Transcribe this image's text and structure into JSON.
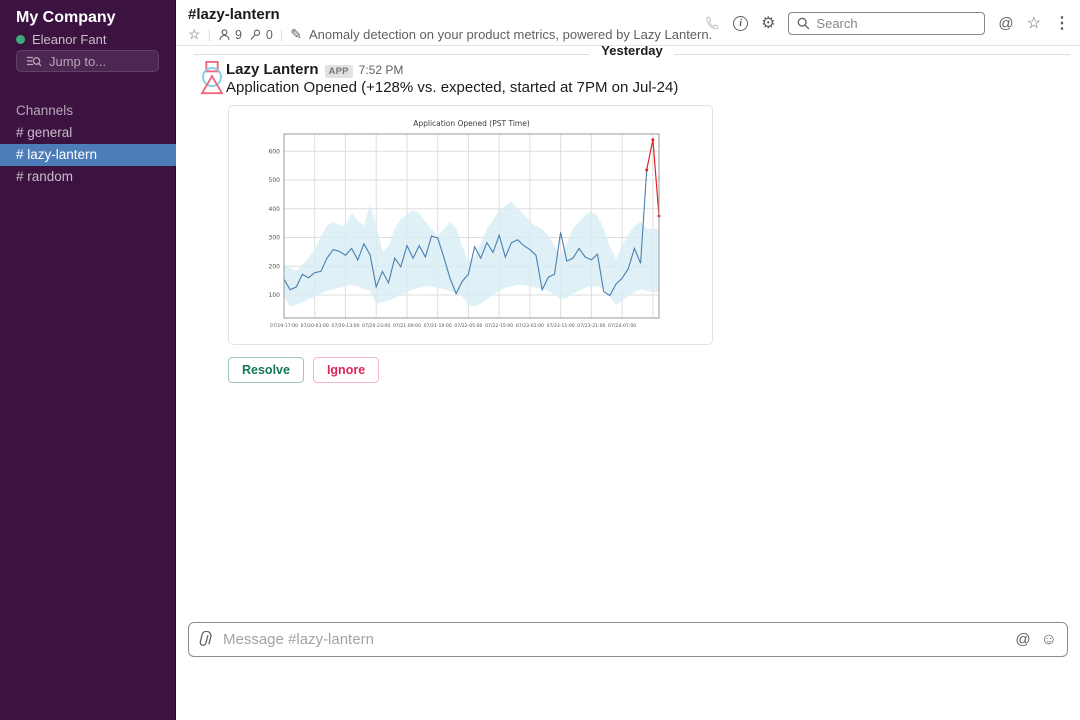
{
  "sidebar": {
    "workspace_name": "My Company",
    "user": {
      "name": "Eleanor Fant",
      "presence": "active"
    },
    "jump_to_label": "Jump to...",
    "channels_header": "Channels",
    "channels": [
      {
        "label": "# general",
        "selected": false
      },
      {
        "label": "# lazy-lantern",
        "selected": true
      },
      {
        "label": "# random",
        "selected": false
      }
    ],
    "colors": {
      "bg": "#3b1240",
      "selected_bg": "#4d7db8",
      "presence_green": "#3daa7c"
    }
  },
  "header": {
    "channel_title": "#lazy-lantern",
    "member_count": "9",
    "pin_count": "0",
    "topic": "Anomaly detection on your product metrics, powered by Lazy Lantern.",
    "search_placeholder": "Search"
  },
  "conversation": {
    "date_divider": "Yesterday",
    "message": {
      "sender": "Lazy Lantern",
      "badge": "APP",
      "timestamp": "7:52 PM",
      "text": "Application Opened (+128% vs. expected, started at 7PM on Jul-24)",
      "actions": [
        {
          "label": "Resolve",
          "style": "green"
        },
        {
          "label": "Ignore",
          "style": "red"
        }
      ]
    }
  },
  "composer": {
    "placeholder": "Message #lazy-lantern"
  },
  "chart_data": {
    "type": "line",
    "title": "Application Opened (PST Time)",
    "x_tick_indices": [
      0,
      5,
      10,
      15,
      20,
      25,
      30,
      35,
      40,
      45,
      50,
      55
    ],
    "grid_extra_indices": [
      60
    ],
    "x_tick_labels": [
      "07/19-17:00",
      "07/20-03:00",
      "07/20-13:00",
      "07/20-23:00",
      "07/21-09:00",
      "07/21-19:00",
      "07/22-05:00",
      "07/22-15:00",
      "07/23-01:00",
      "07/23-11:00",
      "07/23-21:00",
      "07/24-07:00"
    ],
    "y_ticks": [
      100,
      200,
      300,
      400,
      500,
      600
    ],
    "ylim": [
      20,
      660
    ],
    "x_count": 62,
    "grid": true,
    "legend": "none",
    "series": [
      {
        "name": "observed",
        "color": "#4a7fb0",
        "values": [
          155,
          118,
          128,
          172,
          160,
          178,
          182,
          228,
          258,
          252,
          238,
          262,
          222,
          278,
          240,
          128,
          182,
          142,
          228,
          198,
          272,
          228,
          272,
          232,
          305,
          298,
          232,
          158,
          105,
          148,
          172,
          268,
          228,
          282,
          248,
          308,
          232,
          282,
          292,
          272,
          258,
          238,
          118,
          162,
          172,
          318,
          218,
          228,
          262,
          232,
          222,
          242,
          112,
          98,
          138,
          158,
          192,
          262,
          210,
          535
        ]
      },
      {
        "name": "anomaly",
        "color": "#e02424",
        "x": [
          59,
          60,
          61
        ],
        "values": [
          535,
          640,
          375
        ]
      }
    ],
    "band": {
      "name": "expected-range",
      "color": "#d7ecf4",
      "upper": [
        210,
        195,
        185,
        205,
        230,
        255,
        305,
        340,
        355,
        345,
        340,
        385,
        360,
        340,
        415,
        340,
        250,
        270,
        330,
        365,
        380,
        395,
        385,
        355,
        330,
        305,
        330,
        355,
        330,
        270,
        215,
        235,
        280,
        330,
        360,
        395,
        410,
        425,
        400,
        380,
        355,
        340,
        330,
        305,
        270,
        240,
        280,
        330,
        355,
        380,
        390,
        375,
        330,
        270,
        225,
        270,
        310,
        340,
        355,
        330,
        330,
        330
      ],
      "lower": [
        95,
        60,
        65,
        75,
        85,
        95,
        105,
        115,
        120,
        125,
        130,
        135,
        130,
        120,
        115,
        70,
        75,
        80,
        90,
        100,
        110,
        120,
        125,
        130,
        130,
        125,
        120,
        115,
        105,
        95,
        65,
        60,
        70,
        85,
        100,
        115,
        125,
        130,
        135,
        135,
        130,
        125,
        120,
        115,
        100,
        85,
        90,
        105,
        115,
        125,
        130,
        130,
        120,
        95,
        65,
        80,
        95,
        110,
        120,
        115,
        110,
        110
      ]
    }
  }
}
